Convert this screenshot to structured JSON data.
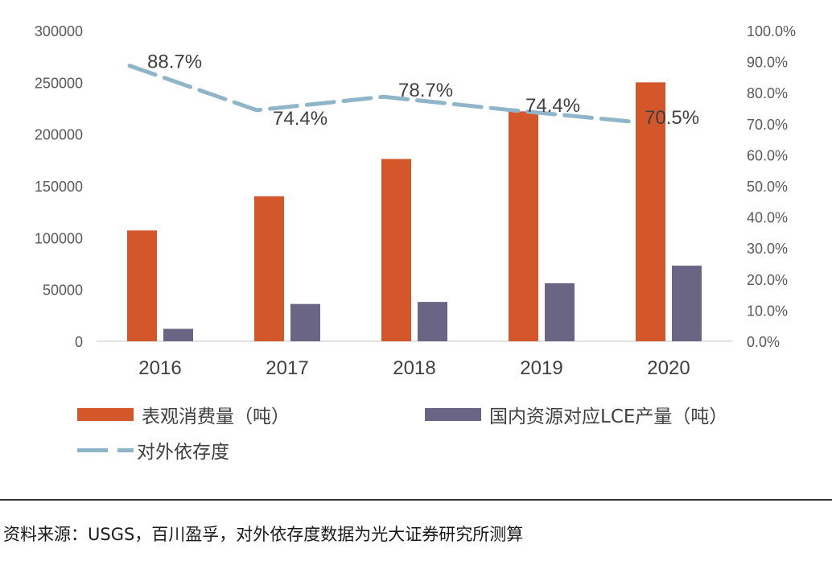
{
  "chart_data": {
    "type": "bar",
    "categories": [
      "2016",
      "2017",
      "2018",
      "2019",
      "2020"
    ],
    "series": [
      {
        "name": "表观消费量（吨）",
        "axis": "left",
        "kind": "bar",
        "color": "#d4572c",
        "values": [
          107000,
          140000,
          176000,
          222000,
          250000
        ]
      },
      {
        "name": "国内资源对应LCE产量（吨）",
        "axis": "left",
        "kind": "bar",
        "color": "#6b6585",
        "values": [
          12000,
          36000,
          38000,
          56000,
          73000
        ]
      },
      {
        "name": "对外依存度",
        "axis": "right",
        "kind": "line-dashed",
        "color": "#8fb5c8",
        "values": [
          88.7,
          74.4,
          78.7,
          74.4,
          70.5
        ],
        "labels": [
          "88.7%",
          "74.4%",
          "78.7%",
          "74.4%",
          "70.5%"
        ]
      }
    ],
    "ylim": [
      0,
      300000
    ],
    "yticks": [
      "0",
      "50000",
      "100000",
      "150000",
      "200000",
      "250000",
      "300000"
    ],
    "y2lim": [
      0,
      100
    ],
    "y2ticks": [
      "0.0%",
      "10.0%",
      "20.0%",
      "30.0%",
      "40.0%",
      "50.0%",
      "60.0%",
      "70.0%",
      "80.0%",
      "90.0%",
      "100.0%"
    ],
    "legend": [
      "表观消费量（吨）",
      "国内资源对应LCE产量（吨）",
      "对外依存度"
    ],
    "legend_position": "bottom"
  },
  "source_note": "资料来源：USGS，百川盈孚，对外依存度数据为光大证券研究所测算"
}
